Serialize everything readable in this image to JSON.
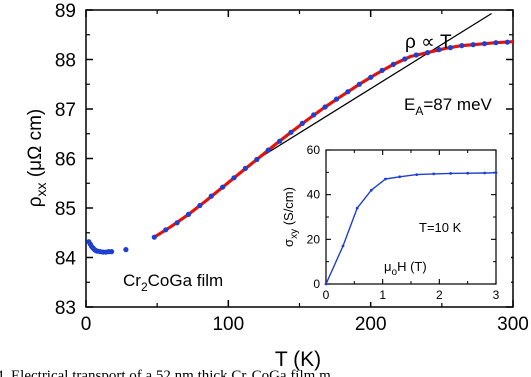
{
  "caption": "4. Electrical transport of a 52 nm thick Cr₂CoGa film m",
  "chart_data": [
    {
      "type": "scatter",
      "title": "",
      "xlabel": "T (K)",
      "ylabel": "ρxx (μΩ cm)",
      "xlim": [
        0,
        300
      ],
      "ylim": [
        83,
        89
      ],
      "xticks": [
        "0",
        "100",
        "200",
        "300"
      ],
      "yticks": [
        "83",
        "84",
        "85",
        "86",
        "87",
        "88",
        "89"
      ],
      "sample_label": "Cr2CoGa film",
      "series": [
        {
          "kind": "points",
          "color": "#1f3fd0",
          "points": [
            [
              2,
              84.32
            ],
            [
              3,
              84.27
            ],
            [
              4,
              84.22
            ],
            [
              5,
              84.19
            ],
            [
              6,
              84.16
            ],
            [
              7,
              84.14
            ],
            [
              8,
              84.13
            ],
            [
              10,
              84.12
            ],
            [
              12,
              84.11
            ],
            [
              14,
              84.11
            ],
            [
              16,
              84.12
            ],
            [
              18,
              84.12
            ],
            [
              28,
              84.16
            ],
            [
              48,
              84.41
            ],
            [
              56,
              84.56
            ],
            [
              64,
              84.7
            ],
            [
              72,
              84.87
            ],
            [
              80,
              85.05
            ],
            [
              88,
              85.24
            ],
            [
              96,
              85.42
            ],
            [
              104,
              85.61
            ],
            [
              112,
              85.8
            ],
            [
              120,
              85.98
            ],
            [
              128,
              86.17
            ],
            [
              136,
              86.35
            ],
            [
              144,
              86.53
            ],
            [
              152,
              86.71
            ],
            [
              160,
              86.88
            ],
            [
              168,
              87.04
            ],
            [
              176,
              87.2
            ],
            [
              184,
              87.35
            ],
            [
              192,
              87.5
            ],
            [
              200,
              87.64
            ],
            [
              208,
              87.78
            ],
            [
              216,
              87.9
            ],
            [
              224,
              88.01
            ],
            [
              232,
              88.09
            ],
            [
              240,
              88.14
            ],
            [
              248,
              88.2
            ],
            [
              256,
              88.24
            ],
            [
              264,
              88.28
            ],
            [
              272,
              88.3
            ],
            [
              280,
              88.32
            ],
            [
              288,
              88.34
            ],
            [
              296,
              88.35
            ]
          ]
        },
        {
          "kind": "line",
          "color": "#e0140f",
          "label": "E_A=87 meV",
          "label_main": "E",
          "label_sub": "A",
          "label_rest": "=87 meV",
          "points": [
            [
              48,
              84.41
            ],
            [
              60,
              84.63
            ],
            [
              72,
              84.87
            ],
            [
              84,
              85.14
            ],
            [
              96,
              85.42
            ],
            [
              108,
              85.7
            ],
            [
              120,
              85.98
            ],
            [
              132,
              86.26
            ],
            [
              144,
              86.53
            ],
            [
              156,
              86.79
            ],
            [
              168,
              87.04
            ],
            [
              180,
              87.27
            ],
            [
              192,
              87.5
            ],
            [
              204,
              87.71
            ],
            [
              216,
              87.9
            ],
            [
              228,
              88.06
            ],
            [
              240,
              88.14
            ],
            [
              252,
              88.22
            ],
            [
              264,
              88.28
            ],
            [
              276,
              88.31
            ],
            [
              288,
              88.34
            ],
            [
              300,
              88.36
            ]
          ]
        },
        {
          "kind": "line",
          "color": "#000000",
          "label": "ρ ∝ T",
          "points": [
            [
              120,
              85.98
            ],
            [
              285,
              88.93
            ]
          ]
        }
      ]
    },
    {
      "type": "line",
      "title": "",
      "xlabel": "μoH (T)",
      "ylabel": "σxy (S/cm)",
      "xlim": [
        0,
        3
      ],
      "ylim": [
        0,
        60
      ],
      "xticks": [
        "0",
        "1",
        "2",
        "3"
      ],
      "yticks": [
        "0",
        "20",
        "40",
        "60"
      ],
      "annotation": "T=10 K",
      "series": [
        {
          "color": "#1f3fd0",
          "points": [
            [
              0,
              0
            ],
            [
              0.3,
              17
            ],
            [
              0.55,
              34
            ],
            [
              0.8,
              42
            ],
            [
              1.05,
              47
            ],
            [
              1.3,
              48
            ],
            [
              1.6,
              49
            ],
            [
              1.9,
              49.3
            ],
            [
              2.2,
              49.5
            ],
            [
              2.5,
              49.6
            ],
            [
              2.8,
              49.7
            ],
            [
              3.0,
              49.8
            ]
          ]
        }
      ]
    }
  ]
}
